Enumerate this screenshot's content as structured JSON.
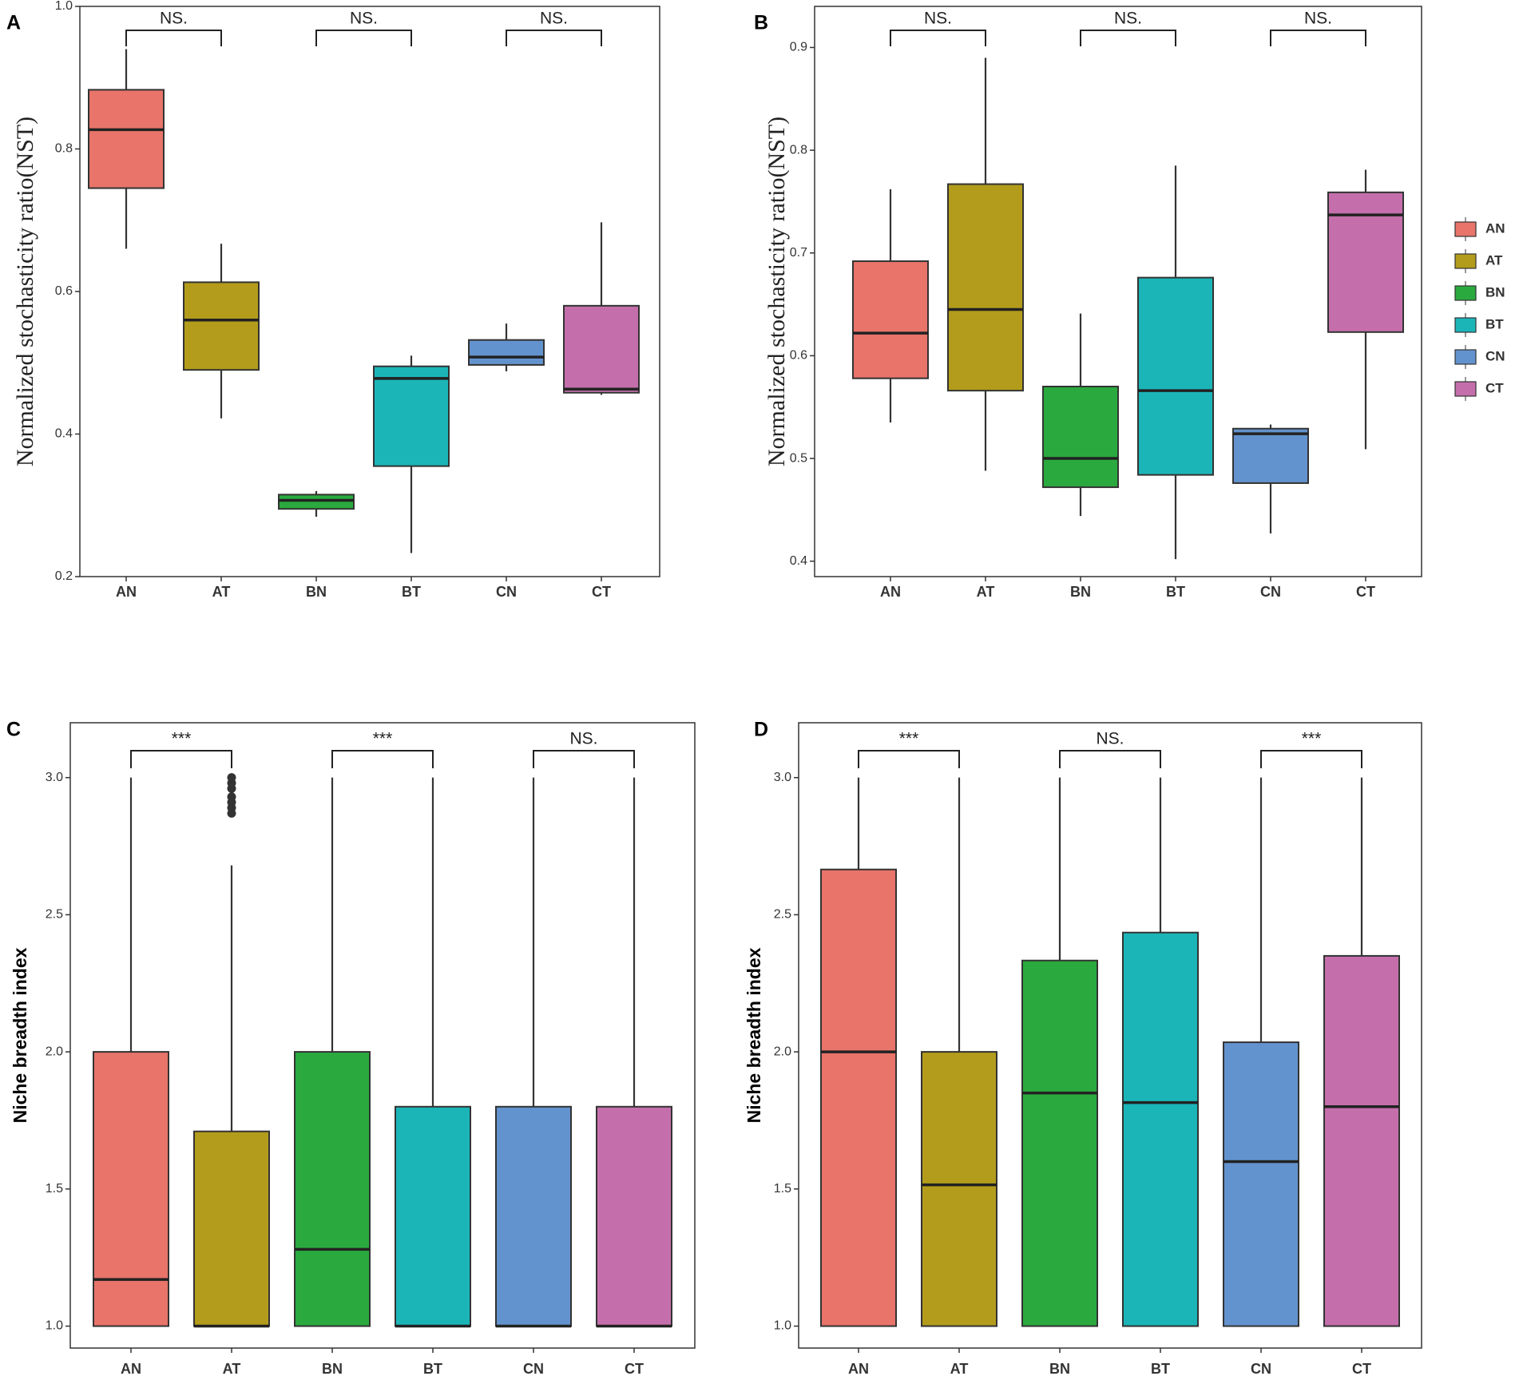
{
  "colors": {
    "AN": "#E8746A",
    "AT": "#B39C1B",
    "BN": "#2AAA3E",
    "BT": "#1BB5B8",
    "CN": "#6393CE",
    "CT": "#C46FAB"
  },
  "legend": {
    "items": [
      "AN",
      "AT",
      "BN",
      "BT",
      "CN",
      "CT"
    ]
  },
  "chart_data": [
    {
      "panel": "A",
      "type": "boxplot",
      "ylabel": "Normalized stochasticity ratio(NST)",
      "ylim": [
        0.2,
        1.0
      ],
      "yticks": [
        0.2,
        0.4,
        0.6,
        0.8,
        1.0
      ],
      "ytick_labels": [
        "0.2",
        "0.4",
        "0.6",
        "0.8",
        "1.0"
      ],
      "categories": [
        "AN",
        "AT",
        "BN",
        "BT",
        "CN",
        "CT"
      ],
      "boxes": [
        {
          "name": "AN",
          "min": 0.66,
          "q1": 0.745,
          "median": 0.827,
          "q3": 0.883,
          "max": 0.94,
          "outliers": []
        },
        {
          "name": "AT",
          "min": 0.422,
          "q1": 0.49,
          "median": 0.56,
          "q3": 0.613,
          "max": 0.667,
          "outliers": []
        },
        {
          "name": "BN",
          "min": 0.284,
          "q1": 0.295,
          "median": 0.307,
          "q3": 0.315,
          "max": 0.32,
          "outliers": []
        },
        {
          "name": "BT",
          "min": 0.233,
          "q1": 0.355,
          "median": 0.478,
          "q3": 0.495,
          "max": 0.51,
          "outliers": []
        },
        {
          "name": "CN",
          "min": 0.488,
          "q1": 0.497,
          "median": 0.508,
          "q3": 0.532,
          "max": 0.555,
          "outliers": []
        },
        {
          "name": "CT",
          "min": 0.455,
          "q1": 0.458,
          "median": 0.463,
          "q3": 0.58,
          "max": 0.697,
          "outliers": []
        }
      ],
      "comparisons": [
        {
          "pair": [
            "AN",
            "AT"
          ],
          "label": "NS."
        },
        {
          "pair": [
            "BN",
            "BT"
          ],
          "label": "NS."
        },
        {
          "pair": [
            "CN",
            "CT"
          ],
          "label": "NS."
        }
      ]
    },
    {
      "panel": "B",
      "type": "boxplot",
      "ylabel": "Normalized stochasticity ratio(NST)",
      "ylim": [
        0.385,
        0.94
      ],
      "yticks": [
        0.4,
        0.5,
        0.6,
        0.7,
        0.8,
        0.9
      ],
      "ytick_labels": [
        "0.4",
        "0.5",
        "0.6",
        "0.7",
        "0.8",
        "0.9"
      ],
      "categories": [
        "AN",
        "AT",
        "BN",
        "BT",
        "CN",
        "CT"
      ],
      "boxes": [
        {
          "name": "AN",
          "min": 0.535,
          "q1": 0.578,
          "median": 0.622,
          "q3": 0.692,
          "max": 0.762,
          "outliers": []
        },
        {
          "name": "AT",
          "min": 0.488,
          "q1": 0.566,
          "median": 0.645,
          "q3": 0.767,
          "max": 0.89,
          "outliers": []
        },
        {
          "name": "BN",
          "min": 0.444,
          "q1": 0.472,
          "median": 0.5,
          "q3": 0.57,
          "max": 0.641,
          "outliers": []
        },
        {
          "name": "BT",
          "min": 0.402,
          "q1": 0.484,
          "median": 0.566,
          "q3": 0.676,
          "max": 0.785,
          "outliers": []
        },
        {
          "name": "CN",
          "min": 0.427,
          "q1": 0.476,
          "median": 0.524,
          "q3": 0.529,
          "max": 0.533,
          "outliers": []
        },
        {
          "name": "CT",
          "min": 0.509,
          "q1": 0.623,
          "median": 0.737,
          "q3": 0.759,
          "max": 0.781,
          "outliers": []
        }
      ],
      "comparisons": [
        {
          "pair": [
            "AN",
            "AT"
          ],
          "label": "NS."
        },
        {
          "pair": [
            "BN",
            "BT"
          ],
          "label": "NS."
        },
        {
          "pair": [
            "CN",
            "CT"
          ],
          "label": "NS."
        }
      ]
    },
    {
      "panel": "C",
      "type": "boxplot",
      "ylabel": "Niche breadth index",
      "ylim": [
        0.92,
        3.2
      ],
      "yticks": [
        1.0,
        1.5,
        2.0,
        2.5,
        3.0
      ],
      "ytick_labels": [
        "1.0",
        "1.5",
        "2.0",
        "2.5",
        "3.0"
      ],
      "categories": [
        "AN",
        "AT",
        "BN",
        "BT",
        "CN",
        "CT"
      ],
      "boxes": [
        {
          "name": "AN",
          "min": 1.0,
          "q1": 1.0,
          "median": 1.17,
          "q3": 2.0,
          "max": 3.0,
          "outliers": []
        },
        {
          "name": "AT",
          "min": 1.0,
          "q1": 1.0,
          "median": 1.0,
          "q3": 1.71,
          "max": 2.68,
          "outliers": [
            2.87,
            2.89,
            2.91,
            2.93,
            2.96,
            2.98,
            3.0
          ]
        },
        {
          "name": "BN",
          "min": 1.0,
          "q1": 1.0,
          "median": 1.28,
          "q3": 2.0,
          "max": 3.0,
          "outliers": []
        },
        {
          "name": "BT",
          "min": 1.0,
          "q1": 1.0,
          "median": 1.0,
          "q3": 1.8,
          "max": 3.0,
          "outliers": []
        },
        {
          "name": "CN",
          "min": 1.0,
          "q1": 1.0,
          "median": 1.0,
          "q3": 1.8,
          "max": 3.0,
          "outliers": []
        },
        {
          "name": "CT",
          "min": 1.0,
          "q1": 1.0,
          "median": 1.0,
          "q3": 1.8,
          "max": 3.0,
          "outliers": []
        }
      ],
      "comparisons": [
        {
          "pair": [
            "AN",
            "AT"
          ],
          "label": "***"
        },
        {
          "pair": [
            "BN",
            "BT"
          ],
          "label": "***"
        },
        {
          "pair": [
            "CN",
            "CT"
          ],
          "label": "NS."
        }
      ]
    },
    {
      "panel": "D",
      "type": "boxplot",
      "ylabel": "Niche breadth index",
      "ylim": [
        0.92,
        3.2
      ],
      "yticks": [
        1.0,
        1.5,
        2.0,
        2.5,
        3.0
      ],
      "ytick_labels": [
        "1.0",
        "1.5",
        "2.0",
        "2.5",
        "3.0"
      ],
      "categories": [
        "AN",
        "AT",
        "BN",
        "BT",
        "CN",
        "CT"
      ],
      "boxes": [
        {
          "name": "AN",
          "min": 1.0,
          "q1": 1.0,
          "median": 2.0,
          "q3": 2.665,
          "max": 3.0,
          "outliers": []
        },
        {
          "name": "AT",
          "min": 1.0,
          "q1": 1.0,
          "median": 1.515,
          "q3": 2.0,
          "max": 3.0,
          "outliers": []
        },
        {
          "name": "BN",
          "min": 1.0,
          "q1": 1.0,
          "median": 1.85,
          "q3": 2.333,
          "max": 3.0,
          "outliers": []
        },
        {
          "name": "BT",
          "min": 1.0,
          "q1": 1.0,
          "median": 1.815,
          "q3": 2.435,
          "max": 3.0,
          "outliers": []
        },
        {
          "name": "CN",
          "min": 1.0,
          "q1": 1.0,
          "median": 1.6,
          "q3": 2.035,
          "max": 3.0,
          "outliers": []
        },
        {
          "name": "CT",
          "min": 1.0,
          "q1": 1.0,
          "median": 1.8,
          "q3": 2.35,
          "max": 3.0,
          "outliers": []
        }
      ],
      "comparisons": [
        {
          "pair": [
            "AN",
            "AT"
          ],
          "label": "***"
        },
        {
          "pair": [
            "BN",
            "BT"
          ],
          "label": "NS."
        },
        {
          "pair": [
            "CN",
            "CT"
          ],
          "label": "***"
        }
      ]
    }
  ]
}
